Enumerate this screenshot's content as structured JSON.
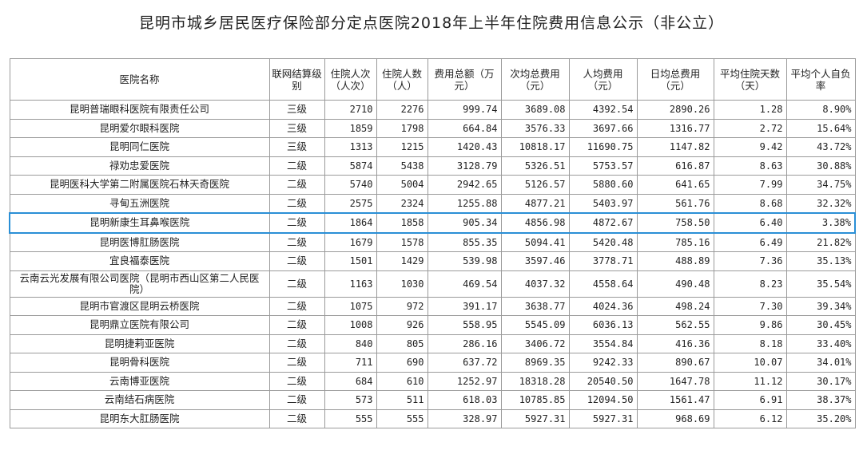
{
  "title": "昆明市城乡居民医疗保险部分定点医院2018年上半年住院费用信息公示（非公立）",
  "headers": [
    "医院名称",
    "联网结算级别",
    "住院人次（人次）",
    "住院人数（人）",
    "费用总额（万元）",
    "次均总费用（元）",
    "人均费用（元）",
    "日均总费用（元）",
    "平均住院天数（天）",
    "平均个人自负率"
  ],
  "rows": [
    [
      "昆明普瑞眼科医院有限责任公司",
      "三级",
      "2710",
      "2276",
      "999.74",
      "3689.08",
      "4392.54",
      "2890.26",
      "1.28",
      "8.90%"
    ],
    [
      "昆明爱尔眼科医院",
      "三级",
      "1859",
      "1798",
      "664.84",
      "3576.33",
      "3697.66",
      "1316.77",
      "2.72",
      "15.64%"
    ],
    [
      "昆明同仁医院",
      "三级",
      "1313",
      "1215",
      "1420.43",
      "10818.17",
      "11690.75",
      "1147.82",
      "9.42",
      "43.72%"
    ],
    [
      "禄劝忠爱医院",
      "二级",
      "5874",
      "5438",
      "3128.79",
      "5326.51",
      "5753.57",
      "616.87",
      "8.63",
      "30.88%"
    ],
    [
      "昆明医科大学第二附属医院石林天奇医院",
      "二级",
      "5740",
      "5004",
      "2942.65",
      "5126.57",
      "5880.60",
      "641.65",
      "7.99",
      "34.75%"
    ],
    [
      "寻甸五洲医院",
      "二级",
      "2575",
      "2324",
      "1255.88",
      "4877.21",
      "5403.97",
      "561.76",
      "8.68",
      "32.32%"
    ],
    [
      "昆明新康生耳鼻喉医院",
      "二级",
      "1864",
      "1858",
      "905.34",
      "4856.98",
      "4872.67",
      "758.50",
      "6.40",
      "3.38%"
    ],
    [
      "昆明医博肛肠医院",
      "二级",
      "1679",
      "1578",
      "855.35",
      "5094.41",
      "5420.48",
      "785.16",
      "6.49",
      "21.82%"
    ],
    [
      "宜良福泰医院",
      "二级",
      "1501",
      "1429",
      "539.98",
      "3597.46",
      "3778.71",
      "488.89",
      "7.36",
      "35.13%"
    ],
    [
      "云南云光发展有限公司医院（昆明市西山区第二人民医院）",
      "二级",
      "1163",
      "1030",
      "469.54",
      "4037.32",
      "4558.64",
      "490.48",
      "8.23",
      "35.54%"
    ],
    [
      "昆明市官渡区昆明云桥医院",
      "二级",
      "1075",
      "972",
      "391.17",
      "3638.77",
      "4024.36",
      "498.24",
      "7.30",
      "39.34%"
    ],
    [
      "昆明鼎立医院有限公司",
      "二级",
      "1008",
      "926",
      "558.95",
      "5545.09",
      "6036.13",
      "562.55",
      "9.86",
      "30.45%"
    ],
    [
      "昆明捷莉亚医院",
      "二级",
      "840",
      "805",
      "286.16",
      "3406.72",
      "3554.84",
      "416.36",
      "8.18",
      "33.40%"
    ],
    [
      "昆明骨科医院",
      "二级",
      "711",
      "690",
      "637.72",
      "8969.35",
      "9242.33",
      "890.67",
      "10.07",
      "34.01%"
    ],
    [
      "云南博亚医院",
      "二级",
      "684",
      "610",
      "1252.97",
      "18318.28",
      "20540.50",
      "1647.78",
      "11.12",
      "30.17%"
    ],
    [
      "云南结石病医院",
      "二级",
      "573",
      "511",
      "618.03",
      "10785.85",
      "12094.50",
      "1561.47",
      "6.91",
      "38.37%"
    ],
    [
      "昆明东大肛肠医院",
      "二级",
      "555",
      "555",
      "328.97",
      "5927.31",
      "5927.31",
      "968.69",
      "6.12",
      "35.20%"
    ]
  ]
}
